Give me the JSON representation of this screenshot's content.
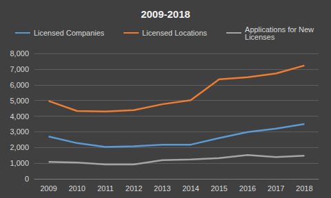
{
  "chart_data": {
    "type": "line",
    "title": "2009-2018",
    "categories": [
      "2009",
      "2010",
      "2011",
      "2012",
      "2013",
      "2014",
      "2015",
      "2016",
      "2017",
      "2018"
    ],
    "series": [
      {
        "name": "Licensed Companies",
        "color": "#5b9bd5",
        "values": [
          2700,
          2280,
          2030,
          2080,
          2170,
          2180,
          2600,
          2980,
          3200,
          3500
        ]
      },
      {
        "name": "Licensed Locations",
        "color": "#ed7d31",
        "values": [
          4970,
          4330,
          4300,
          4380,
          4760,
          5020,
          6350,
          6480,
          6720,
          7230
        ]
      },
      {
        "name": "Applications for New Licenses",
        "color": "#a5a5a5",
        "values": [
          1080,
          1040,
          920,
          920,
          1190,
          1230,
          1320,
          1520,
          1390,
          1480
        ]
      }
    ],
    "ylim": [
      0,
      8000
    ],
    "yticks": [
      0,
      {
        "value": 1000,
        "label": "1,000"
      },
      {
        "value": 2000,
        "label": "2,000"
      },
      {
        "value": 3000,
        "label": "3,000"
      },
      {
        "value": 4000,
        "label": "4,000"
      },
      {
        "value": 5000,
        "label": "5,000"
      },
      {
        "value": 6000,
        "label": "6,000"
      },
      {
        "value": 7000,
        "label": "7,000"
      },
      {
        "value": 8000,
        "label": "8,000"
      }
    ],
    "grid": true,
    "legend": "top"
  }
}
